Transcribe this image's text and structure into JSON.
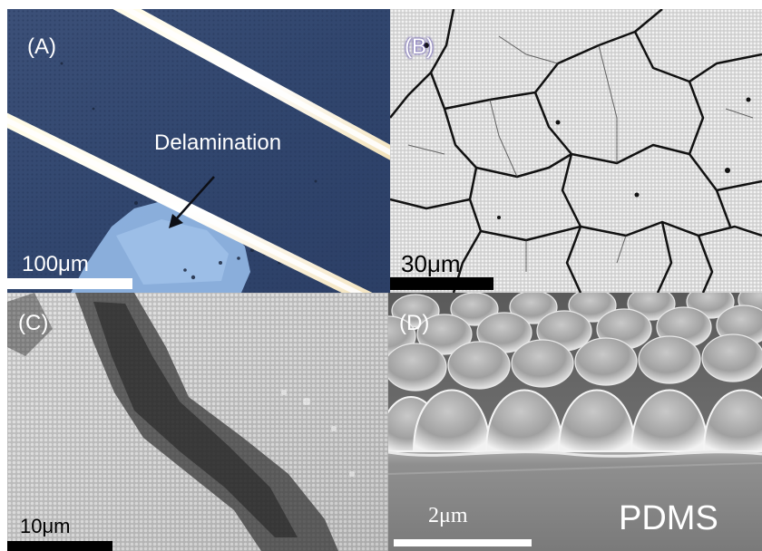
{
  "panels": {
    "a": {
      "label": "(A)",
      "annotation": "Delamination",
      "scale": "100μm"
    },
    "b": {
      "label": "(B)",
      "scale": "30μm"
    },
    "c": {
      "label": "(C)",
      "scale": "10μm"
    },
    "d": {
      "label": "(D)",
      "scale": "2μm",
      "substrate": "PDMS"
    }
  }
}
